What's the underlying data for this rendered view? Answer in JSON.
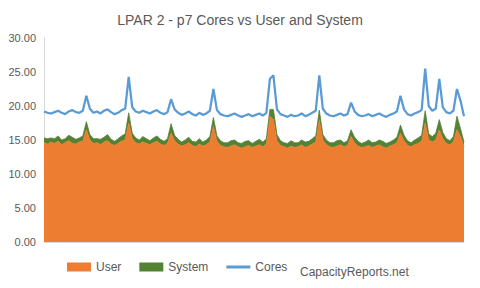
{
  "chart_data": {
    "type": "area",
    "title": "LPAR 2 - p7 Cores vs User and System",
    "annotations": [
      "CapacityReports.net"
    ],
    "categories": [
      null,
      null,
      null,
      null,
      null,
      null,
      null,
      null,
      null,
      null,
      null,
      null,
      null,
      null,
      null,
      null,
      null,
      null,
      null,
      null,
      null,
      null,
      null,
      null,
      null,
      null,
      null,
      null,
      null,
      null,
      null,
      null,
      null,
      null,
      null,
      null,
      null,
      null,
      null,
      null,
      null,
      null,
      null,
      null,
      null,
      null,
      null,
      null,
      null,
      null,
      null,
      null,
      null,
      null,
      null,
      null,
      null,
      null,
      null,
      null,
      null,
      null,
      null,
      null,
      null,
      null,
      null,
      null,
      null,
      null,
      null,
      null,
      null,
      null,
      null,
      null,
      null,
      null,
      null,
      null,
      null,
      null,
      null,
      null,
      null,
      null,
      null,
      null,
      null,
      null,
      null,
      null,
      null,
      null,
      null,
      null,
      null,
      null,
      null,
      null,
      null,
      null,
      null,
      null,
      null,
      null,
      null,
      null,
      null,
      null,
      null,
      null,
      null,
      null,
      null,
      null,
      null,
      null,
      null,
      null
    ],
    "series": [
      {
        "name": "User",
        "type": "area",
        "color": "#ed7d31",
        "values": [
          14.6,
          14.4,
          14.7,
          14.5,
          14.8,
          14.3,
          14.6,
          14.9,
          14.5,
          14.4,
          14.7,
          14.8,
          16.5,
          15.0,
          14.5,
          14.6,
          14.3,
          14.7,
          14.9,
          14.4,
          14.2,
          14.5,
          14.8,
          15.0,
          17.5,
          15.2,
          14.6,
          14.4,
          14.7,
          14.5,
          14.3,
          14.6,
          14.8,
          14.4,
          14.2,
          14.5,
          16.0,
          14.9,
          14.4,
          14.1,
          14.3,
          14.6,
          14.2,
          14.0,
          14.4,
          14.1,
          14.3,
          14.7,
          17.0,
          14.8,
          14.2,
          14.0,
          13.9,
          14.1,
          14.3,
          14.0,
          13.8,
          14.0,
          14.2,
          13.9,
          14.1,
          14.3,
          14.0,
          14.4,
          18.5,
          18.0,
          14.9,
          14.2,
          14.0,
          13.8,
          14.1,
          13.9,
          14.0,
          14.3,
          13.9,
          14.1,
          14.4,
          14.7,
          18.0,
          15.0,
          14.3,
          14.0,
          13.9,
          14.1,
          14.3,
          14.0,
          14.2,
          15.5,
          14.6,
          14.1,
          13.9,
          14.0,
          14.2,
          13.9,
          14.1,
          14.3,
          14.0,
          13.8,
          14.1,
          14.3,
          14.6,
          16.0,
          14.9,
          14.2,
          14.0,
          14.3,
          14.5,
          14.8,
          17.5,
          15.0,
          14.7,
          15.0,
          16.5,
          15.2,
          14.5,
          14.3,
          14.7,
          16.5,
          15.5,
          14.0
        ]
      },
      {
        "name": "System",
        "type": "area",
        "color": "#548235",
        "values": [
          0.7,
          0.8,
          0.6,
          0.7,
          0.8,
          0.7,
          0.6,
          0.8,
          0.9,
          0.7,
          0.6,
          0.8,
          1.2,
          0.8,
          0.7,
          0.6,
          0.8,
          0.7,
          0.9,
          0.7,
          0.6,
          0.7,
          0.8,
          0.9,
          1.5,
          0.8,
          0.7,
          0.6,
          0.8,
          0.7,
          0.6,
          0.7,
          0.8,
          0.7,
          0.6,
          0.7,
          1.4,
          0.8,
          0.7,
          0.6,
          0.7,
          0.8,
          0.6,
          0.7,
          0.8,
          0.6,
          0.7,
          0.8,
          1.3,
          0.8,
          0.7,
          0.6,
          0.7,
          0.8,
          0.7,
          0.6,
          0.7,
          0.8,
          0.7,
          0.6,
          0.7,
          0.8,
          0.7,
          0.8,
          1.0,
          1.5,
          0.9,
          0.7,
          0.6,
          0.7,
          0.8,
          0.7,
          0.6,
          0.7,
          0.8,
          0.7,
          0.8,
          0.9,
          1.4,
          0.8,
          0.7,
          0.6,
          0.7,
          0.8,
          0.7,
          0.6,
          0.7,
          1.0,
          0.8,
          0.7,
          0.6,
          0.7,
          0.8,
          0.7,
          0.6,
          0.7,
          0.8,
          0.7,
          0.6,
          0.7,
          0.8,
          1.2,
          0.8,
          0.7,
          0.6,
          0.7,
          0.8,
          0.9,
          1.8,
          0.9,
          0.8,
          1.0,
          1.5,
          0.9,
          0.7,
          0.6,
          0.8,
          2.0,
          1.2,
          0.7
        ]
      },
      {
        "name": "Cores",
        "type": "line",
        "color": "#5b9bd5",
        "values": [
          19.2,
          19.0,
          18.9,
          19.1,
          19.3,
          19.0,
          18.8,
          19.2,
          19.4,
          19.1,
          19.0,
          19.3,
          21.5,
          19.6,
          19.0,
          19.2,
          18.9,
          19.3,
          19.5,
          19.1,
          18.8,
          19.0,
          19.4,
          19.6,
          24.3,
          19.8,
          19.2,
          19.0,
          19.3,
          19.1,
          18.9,
          19.2,
          19.4,
          19.0,
          18.8,
          19.1,
          21.0,
          19.5,
          19.0,
          18.7,
          18.9,
          19.2,
          18.8,
          18.6,
          19.0,
          18.7,
          18.9,
          19.3,
          22.5,
          19.4,
          18.8,
          18.6,
          18.5,
          18.7,
          18.9,
          18.6,
          18.4,
          18.6,
          18.8,
          18.5,
          18.7,
          18.9,
          18.6,
          19.0,
          24.0,
          24.5,
          19.5,
          18.8,
          18.6,
          18.4,
          18.7,
          18.5,
          18.6,
          18.9,
          18.5,
          18.7,
          19.0,
          19.3,
          24.5,
          19.6,
          18.9,
          18.6,
          18.5,
          18.7,
          18.9,
          18.6,
          18.8,
          20.5,
          19.2,
          18.7,
          18.5,
          18.6,
          18.8,
          18.5,
          18.7,
          18.9,
          18.6,
          18.4,
          18.7,
          18.9,
          19.2,
          21.5,
          19.5,
          18.8,
          18.6,
          18.9,
          19.1,
          19.4,
          25.5,
          20.0,
          19.3,
          19.6,
          24.0,
          19.8,
          19.1,
          18.9,
          19.3,
          22.5,
          20.8,
          18.5
        ]
      }
    ],
    "ylim": [
      0,
      30
    ],
    "yticks": [
      {
        "value": 0,
        "label": "0.00"
      },
      {
        "value": 5,
        "label": "5.00"
      },
      {
        "value": 10,
        "label": "10.00"
      },
      {
        "value": 15,
        "label": "15.00"
      },
      {
        "value": 20,
        "label": "20.00"
      },
      {
        "value": 25,
        "label": "25.00"
      },
      {
        "value": 30,
        "label": "30.00"
      }
    ],
    "stacked": true,
    "grid": false,
    "legend": "bottom",
    "tick_labels": "y"
  }
}
